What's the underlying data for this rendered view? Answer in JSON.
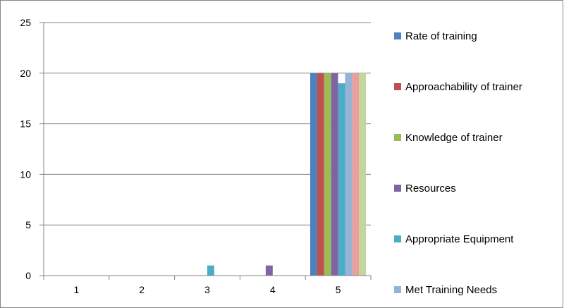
{
  "chart_data": {
    "type": "bar",
    "categories": [
      "1",
      "2",
      "3",
      "4",
      "5"
    ],
    "ylim": [
      0,
      25
    ],
    "yticks": [
      0,
      5,
      10,
      15,
      20,
      25
    ],
    "grid": "horizontal",
    "legend_position": "right",
    "series": [
      {
        "name": "Rate of training",
        "color": "#4f81bd",
        "values": [
          0,
          0,
          0,
          0,
          20
        ]
      },
      {
        "name": "Approachability of trainer",
        "color": "#c0504d",
        "values": [
          0,
          0,
          0,
          0,
          20
        ]
      },
      {
        "name": "Knowledge of trainer",
        "color": "#9bbb59",
        "values": [
          0,
          0,
          0,
          0,
          20
        ]
      },
      {
        "name": "Resources",
        "color": "#8064a2",
        "values": [
          0,
          0,
          0,
          1,
          20
        ]
      },
      {
        "name": "Appropriate Equipment",
        "color": "#4bacc6",
        "values": [
          0,
          0,
          1,
          0,
          19
        ]
      },
      {
        "name": "Met Training Needs",
        "color": "#95b3d7",
        "values": [
          0,
          0,
          0,
          0,
          20
        ]
      },
      {
        "color": "#e6a09e",
        "values": [
          0,
          0,
          0,
          0,
          20
        ]
      },
      {
        "color": "#c3d69b",
        "values": [
          0,
          0,
          0,
          0,
          20
        ]
      }
    ]
  }
}
